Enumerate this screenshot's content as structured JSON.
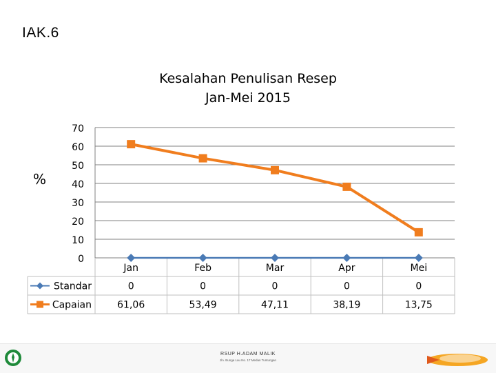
{
  "slide": {
    "label": "IAK.6"
  },
  "y_unit": "%",
  "footer": {
    "organization": "RSUP H.ADAM MALIK",
    "address_line_1": "Jln. Bunga Lau No. 17 Medan Tuntungan",
    "address_line_2": ""
  },
  "colors": {
    "standar": "#4a7ab5",
    "capaian": "#f07d1e",
    "grid": "#808080",
    "table_border": "#bfbfbf"
  },
  "chart_data": {
    "type": "line",
    "title": "Kesalahan Penulisan Resep",
    "subtitle": "Jan-Mei 2015",
    "categories": [
      "Jan",
      "Feb",
      "Mar",
      "Apr",
      "Mei"
    ],
    "ylim": [
      0,
      70
    ],
    "yticks": [
      0,
      10,
      20,
      30,
      40,
      50,
      60,
      70
    ],
    "ytick_labels": [
      "0",
      "10",
      "20",
      "30",
      "40",
      "50",
      "60",
      "70"
    ],
    "grid": true,
    "legend": "data-table",
    "series": [
      {
        "name": "Standar",
        "values": [
          0,
          0,
          0,
          0,
          0
        ],
        "labels": [
          "0",
          "0",
          "0",
          "0",
          "0"
        ],
        "marker": "diamond"
      },
      {
        "name": "Capaian",
        "values": [
          61.06,
          53.49,
          47.11,
          38.19,
          13.75
        ],
        "labels": [
          "61,06",
          "53,49",
          "47,11",
          "38,19",
          "13,75"
        ],
        "marker": "square"
      }
    ]
  }
}
